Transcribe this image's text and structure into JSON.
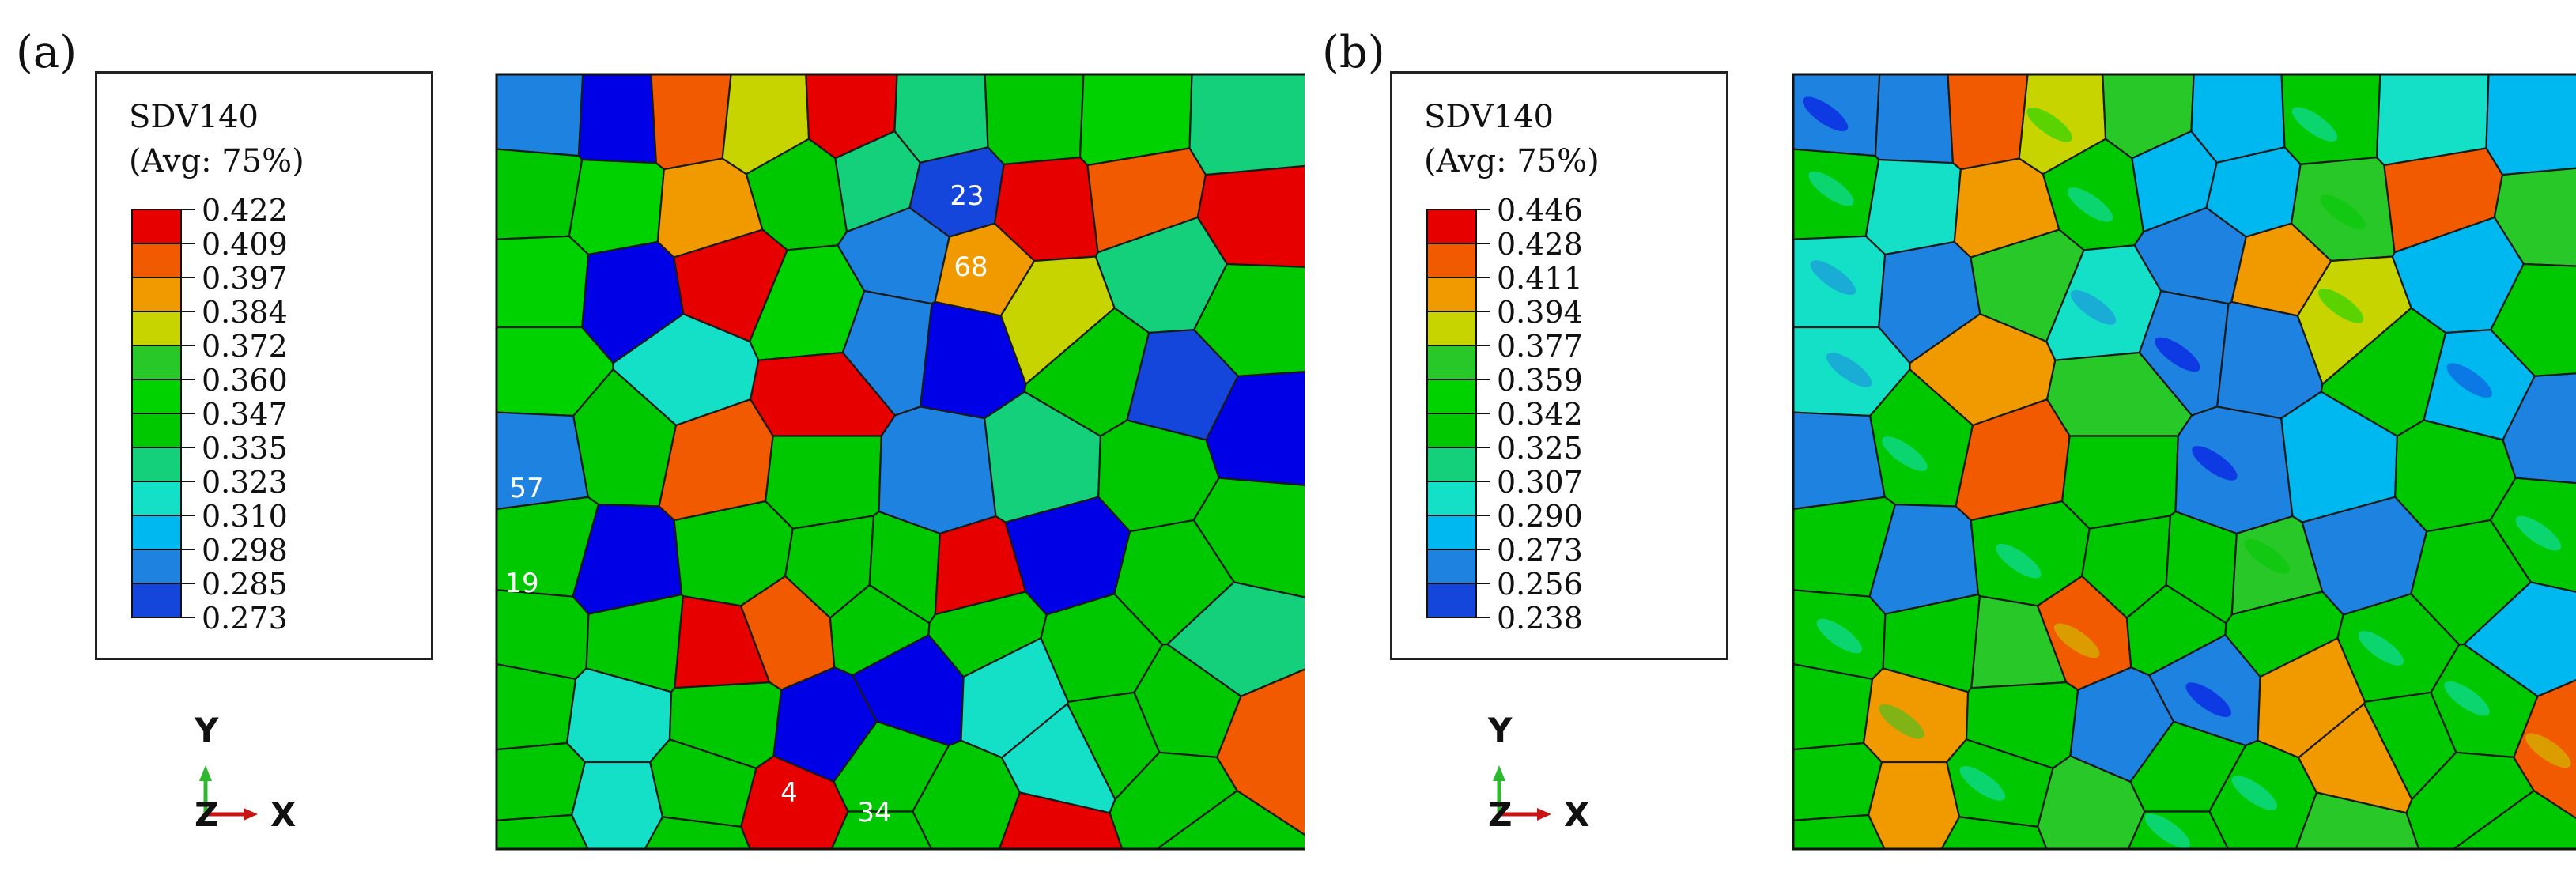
{
  "panels": [
    {
      "label": "(a)",
      "legend": {
        "title": "SDV140",
        "subtitle": "(Avg: 75%)",
        "values": [
          "0.422",
          "0.409",
          "0.397",
          "0.384",
          "0.372",
          "0.360",
          "0.347",
          "0.335",
          "0.323",
          "0.310",
          "0.298",
          "0.285",
          "0.273"
        ]
      },
      "grain_labels": [
        {
          "id": "g23",
          "text": "23"
        },
        {
          "id": "g68",
          "text": "68"
        },
        {
          "id": "g57",
          "text": "57"
        },
        {
          "id": "g19",
          "text": "19"
        },
        {
          "id": "g4",
          "text": "4"
        },
        {
          "id": "g34",
          "text": "34"
        }
      ],
      "axes": {
        "y": "Y",
        "z": "Z",
        "x": "X"
      }
    },
    {
      "label": "(b)",
      "legend": {
        "title": "SDV140",
        "subtitle": "(Avg: 75%)",
        "values": [
          "0.446",
          "0.428",
          "0.411",
          "0.394",
          "0.377",
          "0.359",
          "0.342",
          "0.325",
          "0.307",
          "0.290",
          "0.273",
          "0.256",
          "0.238"
        ]
      },
      "axes": {
        "y": "Y",
        "z": "Z",
        "x": "X"
      }
    }
  ],
  "colormap": [
    "#e60000",
    "#f25a00",
    "#f09a00",
    "#c8d400",
    "#28c828",
    "#00d200",
    "#00c800",
    "#14d07a",
    "#14e0c8",
    "#00b8f0",
    "#1e82e0",
    "#1446dc",
    "#0000e6"
  ]
}
